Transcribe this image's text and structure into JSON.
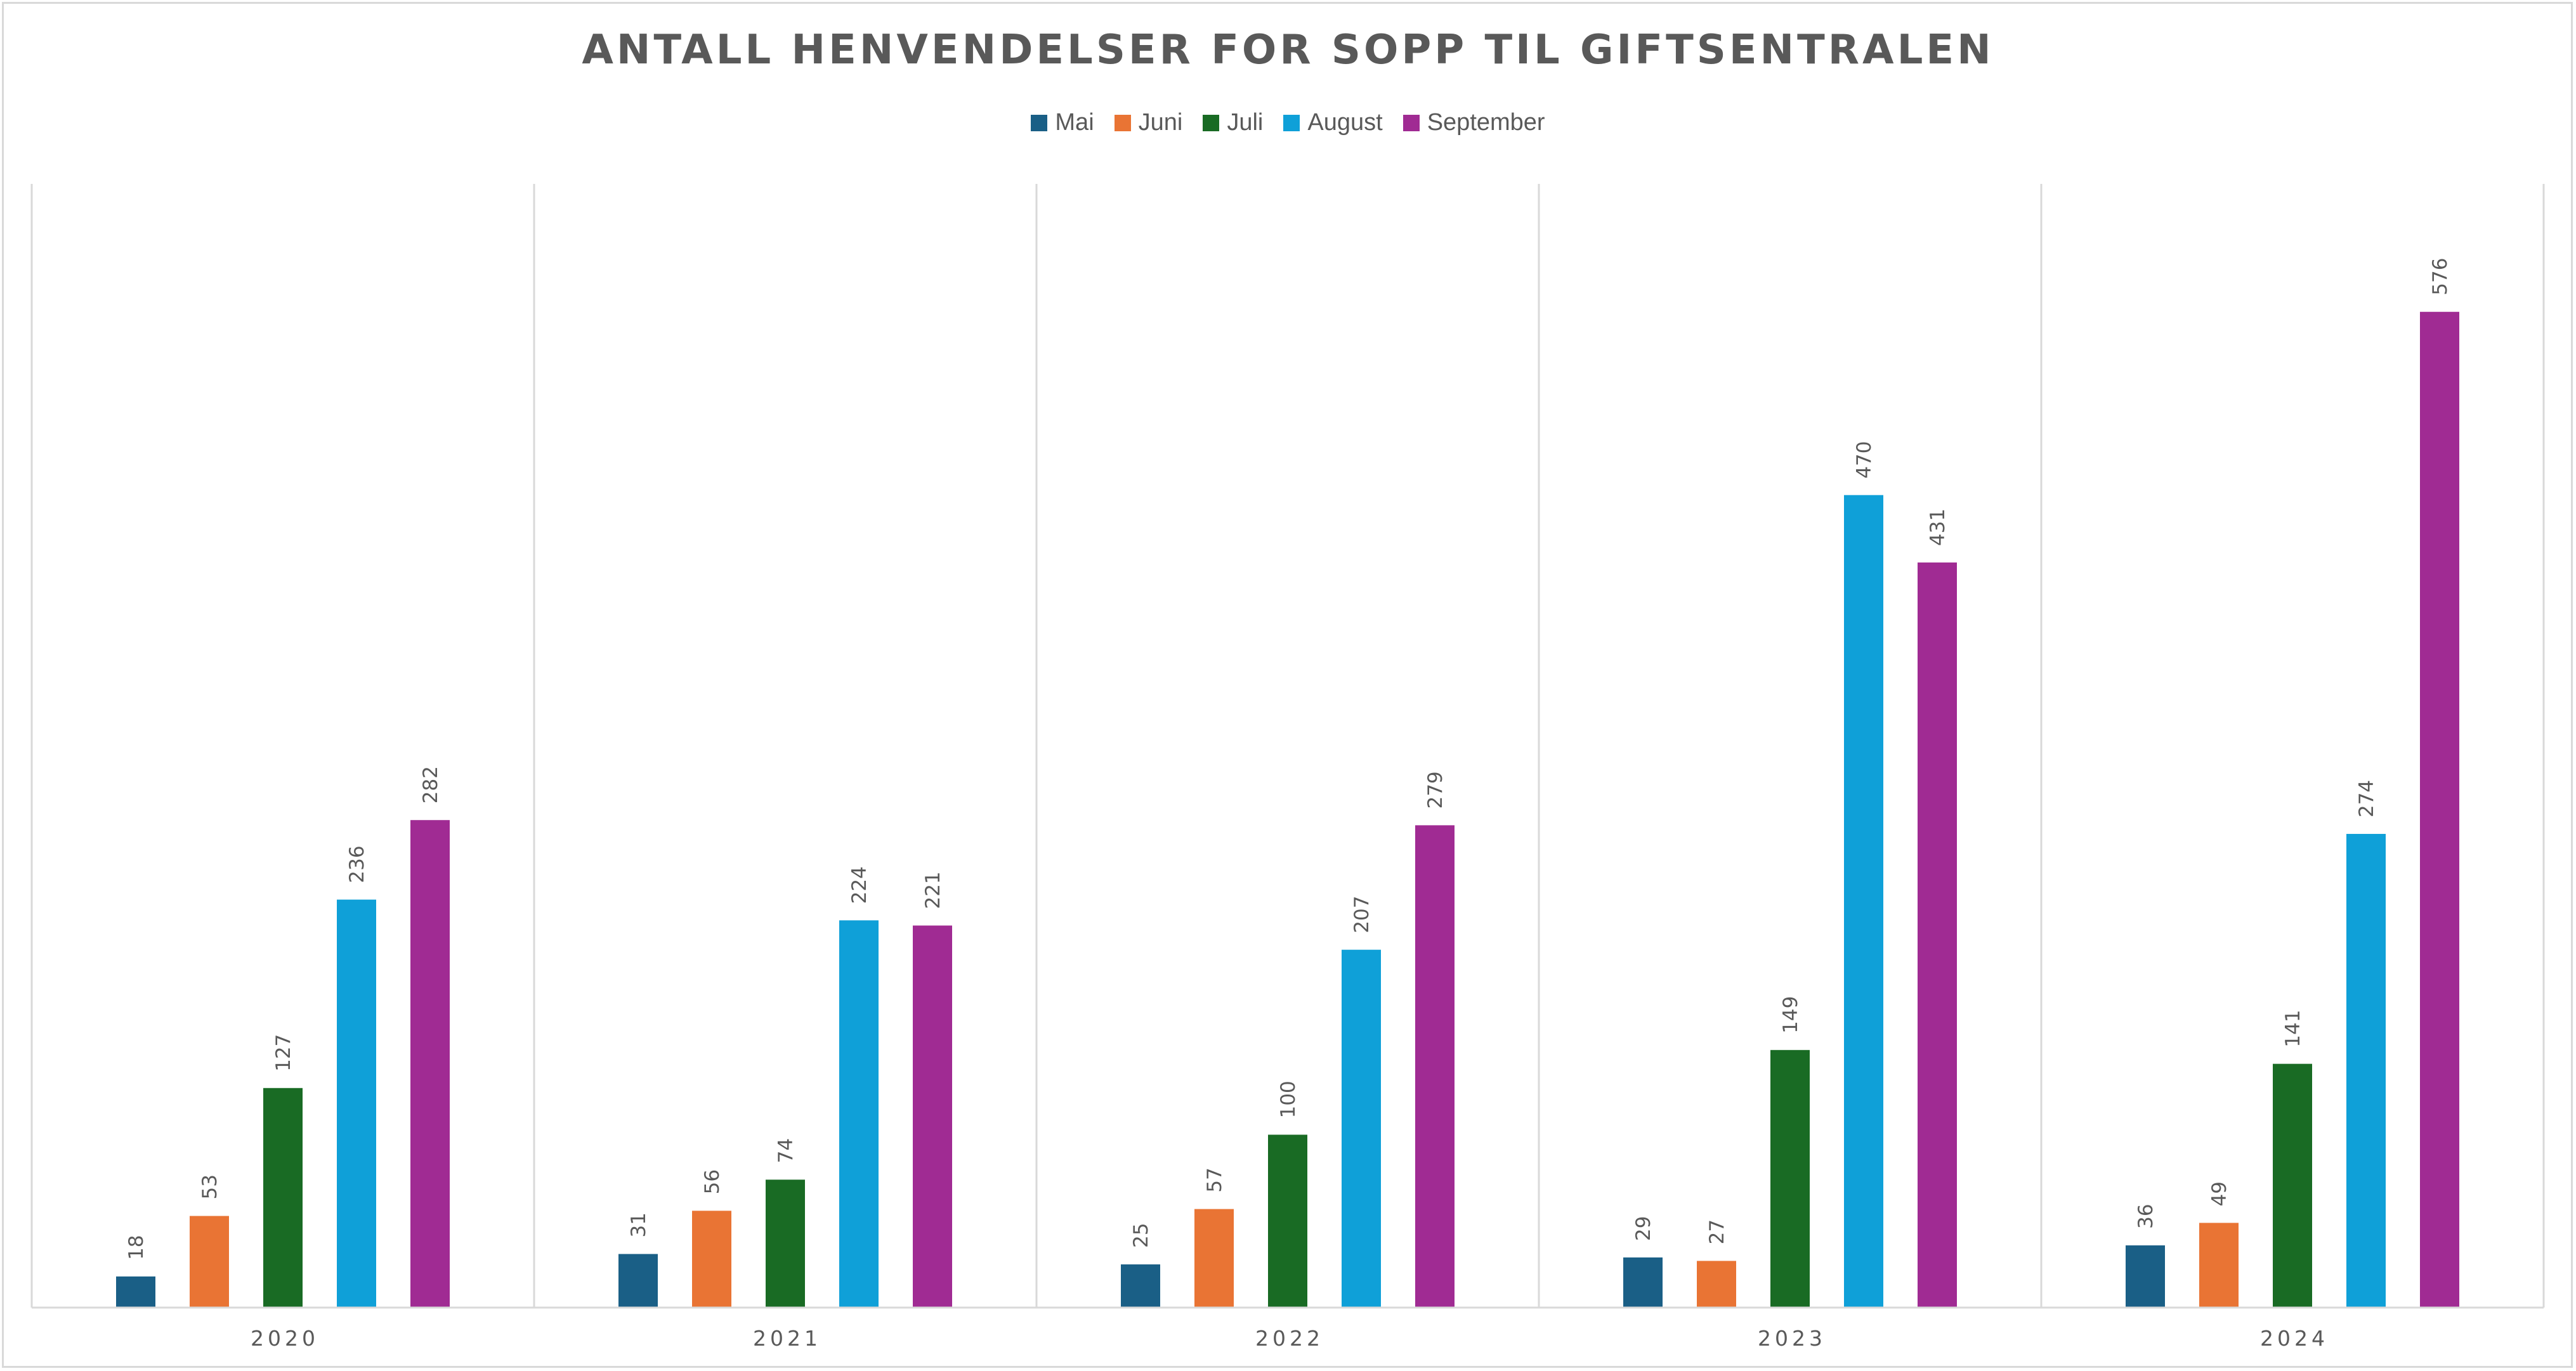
{
  "chart_data": {
    "type": "bar",
    "title": "ANTALL HENVENDELSER FOR SOPP TIL GIFTSENTRALEN",
    "xlabel": "",
    "ylabel": "",
    "categories": [
      "2020",
      "2021",
      "2022",
      "2023",
      "2024"
    ],
    "series": [
      {
        "name": "Mai",
        "color": "#1a5f86",
        "values": [
          18,
          31,
          25,
          29,
          36
        ]
      },
      {
        "name": "Juni",
        "color": "#e97434",
        "values": [
          53,
          56,
          57,
          27,
          49
        ]
      },
      {
        "name": "Juli",
        "color": "#196b24",
        "values": [
          127,
          74,
          100,
          149,
          141
        ]
      },
      {
        "name": "August",
        "color": "#0fa0d8",
        "values": [
          236,
          224,
          207,
          470,
          274
        ]
      },
      {
        "name": "September",
        "color": "#a02b93",
        "values": [
          282,
          221,
          279,
          431,
          576
        ]
      }
    ],
    "ylim": [
      0,
      650
    ],
    "grid": false,
    "category_separators": true,
    "data_labels": true,
    "legend_position": "top"
  }
}
